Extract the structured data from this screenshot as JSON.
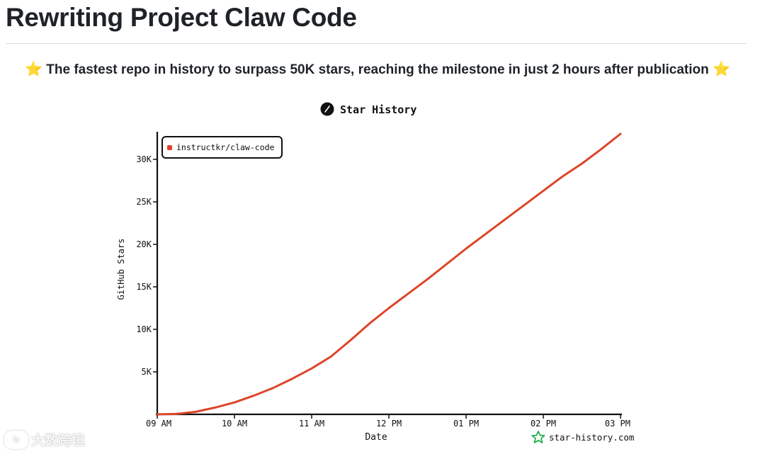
{
  "page": {
    "title": "Rewriting Project Claw Code",
    "headline": "The fastest repo in history to surpass 50K stars, reaching the milestone in just 2 hours after publication",
    "headline_icon": "star-emoji"
  },
  "watermark": {
    "text": "大数跨境"
  },
  "chart_data": {
    "type": "line",
    "title": "Star History",
    "xlabel": "Date",
    "ylabel": "GitHub Stars",
    "x_ticks": [
      "09 AM",
      "10 AM",
      "11 AM",
      "12 PM",
      "01 PM",
      "02 PM",
      "03 PM"
    ],
    "y_ticks": [
      "5K",
      "10K",
      "15K",
      "20K",
      "25K",
      "30K"
    ],
    "ylim": [
      0,
      33000
    ],
    "xlim": [
      9.0,
      15.0
    ],
    "x_unit": "hour of day",
    "legend_position": "top-left",
    "footer": "star-history.com",
    "series": [
      {
        "name": "instructkr/claw-code",
        "color": "#dd4528",
        "x": [
          9.0,
          9.25,
          9.5,
          9.75,
          10.0,
          10.25,
          10.5,
          10.75,
          11.0,
          11.25,
          11.5,
          11.75,
          12.0,
          12.25,
          12.5,
          12.75,
          13.0,
          13.25,
          13.5,
          13.75,
          14.0,
          14.25,
          14.5,
          14.75,
          15.0
        ],
        "values": [
          0,
          50,
          300,
          800,
          1400,
          2200,
          3100,
          4200,
          5400,
          6800,
          8700,
          10700,
          12500,
          14200,
          15900,
          17700,
          19500,
          21200,
          22900,
          24600,
          26300,
          28000,
          29500,
          31200,
          33000
        ]
      }
    ]
  }
}
